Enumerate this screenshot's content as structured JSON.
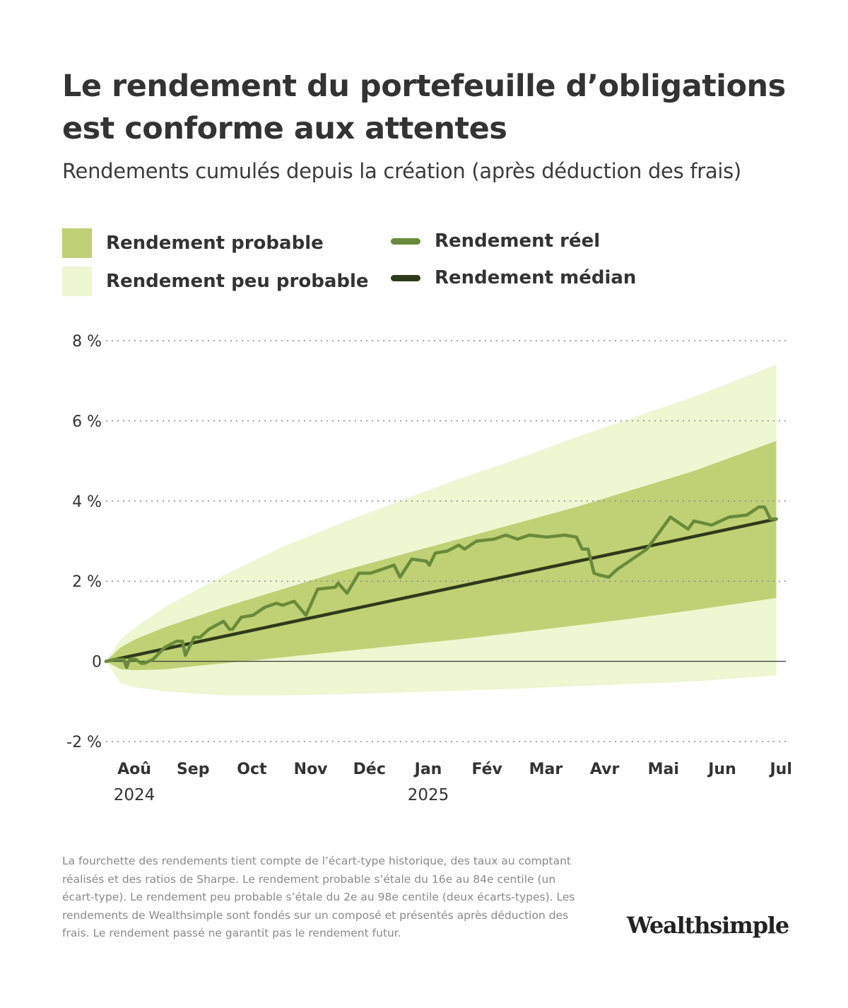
{
  "header": {
    "title": "Le rendement du portefeuille d’obligations est conforme aux attentes",
    "subtitle": "Rendements cumulés depuis la création (après déduction des frais)"
  },
  "legend": {
    "probable": {
      "label": "Rendement probable",
      "color": "#bfd174"
    },
    "improbable": {
      "label": "Rendement peu probable",
      "color": "#eef6d2"
    },
    "actual": {
      "label": "Rendement réel",
      "color": "#6a8a3a"
    },
    "median": {
      "label": "Rendement médian",
      "color": "#2e3a1a"
    }
  },
  "chart_data": {
    "type": "area",
    "title": "Le rendement du portefeuille d’obligations est conforme aux attentes",
    "subtitle": "Rendements cumulés depuis la création (après déduction des frais)",
    "ylim": [
      -2,
      8
    ],
    "y_ticks": [
      {
        "value": 8,
        "label": "8 %"
      },
      {
        "value": 6,
        "label": "6 %"
      },
      {
        "value": 4,
        "label": "4 %"
      },
      {
        "value": 2,
        "label": "2 %"
      },
      {
        "value": 0,
        "label": "0"
      },
      {
        "value": -2,
        "label": "-2 %"
      }
    ],
    "x_ticks": [
      "Aoû",
      "Sep",
      "Oct",
      "Nov",
      "Déc",
      "Jan",
      "Fév",
      "Mar",
      "Avr",
      "Mai",
      "Jun",
      "Jul"
    ],
    "x_years": [
      {
        "at": "Aoû",
        "label": "2024"
      },
      {
        "at": "Jan",
        "label": "2025"
      }
    ],
    "grid": "horizontal dotted",
    "legend_position": "top",
    "x_unit": "months since inception (Aoû 2024 = 0)",
    "series": [
      {
        "name": "Rendement peu probable",
        "kind": "band",
        "x": [
          0,
          0.25,
          0.5,
          1,
          1.5,
          2,
          3,
          4,
          5,
          6,
          7,
          8,
          9,
          10,
          11.4
        ],
        "upper": [
          0,
          0.55,
          0.85,
          1.35,
          1.75,
          2.15,
          2.85,
          3.45,
          4.0,
          4.55,
          5.05,
          5.6,
          6.1,
          6.6,
          7.4
        ],
        "lower": [
          0,
          -0.55,
          -0.65,
          -0.75,
          -0.8,
          -0.85,
          -0.85,
          -0.82,
          -0.78,
          -0.73,
          -0.68,
          -0.62,
          -0.56,
          -0.5,
          -0.35
        ]
      },
      {
        "name": "Rendement probable",
        "kind": "band",
        "x": [
          0,
          0.25,
          0.5,
          1,
          1.5,
          2,
          3,
          4,
          5,
          6,
          7,
          8,
          9,
          10,
          11.4
        ],
        "upper": [
          0,
          0.35,
          0.55,
          0.85,
          1.1,
          1.35,
          1.8,
          2.25,
          2.65,
          3.05,
          3.45,
          3.85,
          4.3,
          4.75,
          5.5
        ],
        "lower": [
          0,
          -0.2,
          -0.22,
          -0.2,
          -0.12,
          -0.05,
          0.1,
          0.25,
          0.4,
          0.55,
          0.72,
          0.9,
          1.08,
          1.28,
          1.58
        ]
      },
      {
        "name": "Rendement médian",
        "kind": "line",
        "x": [
          0,
          11.4
        ],
        "y": [
          0,
          3.55
        ]
      },
      {
        "name": "Rendement réel",
        "kind": "line",
        "x": [
          0,
          0.15,
          0.3,
          0.35,
          0.4,
          0.5,
          0.6,
          0.65,
          0.8,
          1,
          1.2,
          1.3,
          1.35,
          1.5,
          1.6,
          1.75,
          2,
          2.1,
          2.15,
          2.3,
          2.5,
          2.7,
          2.8,
          2.9,
          3,
          3.2,
          3.4,
          3.6,
          3.9,
          3.95,
          4.1,
          4.3,
          4.5,
          4.8,
          4.9,
          5,
          5.2,
          5.45,
          5.5,
          5.6,
          5.8,
          6,
          6.1,
          6.3,
          6.6,
          6.8,
          7,
          7.2,
          7.5,
          7.8,
          8,
          8.1,
          8.2,
          8.3,
          8.4,
          8.55,
          8.7,
          9,
          9.2,
          9.4,
          9.6,
          9.9,
          10,
          10.3,
          10.6,
          10.9,
          11,
          11.1,
          11.2,
          11.3,
          11.4
        ],
        "y": [
          0,
          0.05,
          0.05,
          -0.15,
          0.05,
          0.05,
          -0.05,
          -0.05,
          0.05,
          0.35,
          0.5,
          0.5,
          0.15,
          0.6,
          0.6,
          0.8,
          1.0,
          0.8,
          0.8,
          1.1,
          1.15,
          1.35,
          1.4,
          1.45,
          1.4,
          1.5,
          1.15,
          1.8,
          1.85,
          1.95,
          1.7,
          2.2,
          2.2,
          2.35,
          2.4,
          2.1,
          2.55,
          2.5,
          2.4,
          2.7,
          2.75,
          2.9,
          2.8,
          3.0,
          3.05,
          3.15,
          3.05,
          3.15,
          3.1,
          3.15,
          3.1,
          2.8,
          2.8,
          2.2,
          2.15,
          2.1,
          2.3,
          2.6,
          2.8,
          3.2,
          3.6,
          3.3,
          3.5,
          3.4,
          3.6,
          3.65,
          3.75,
          3.85,
          3.85,
          3.55,
          3.55
        ]
      }
    ]
  },
  "footnote": "La fourchette des rendements tient compte de l’écart-type historique, des taux au comptant réalisés et des ratios de Sharpe. Le rendement probable s’étale du 16e au 84e centile (un écart-type). Le rendement peu probable s’étale du 2e au 98e centile (deux écarts-types). Les rendements de Wealthsimple sont fondés sur un composé et présentés après déduction des frais. Le rendement passé ne garantit pas le rendement futur.",
  "brand": {
    "logo_text": "Wealthsimple"
  }
}
